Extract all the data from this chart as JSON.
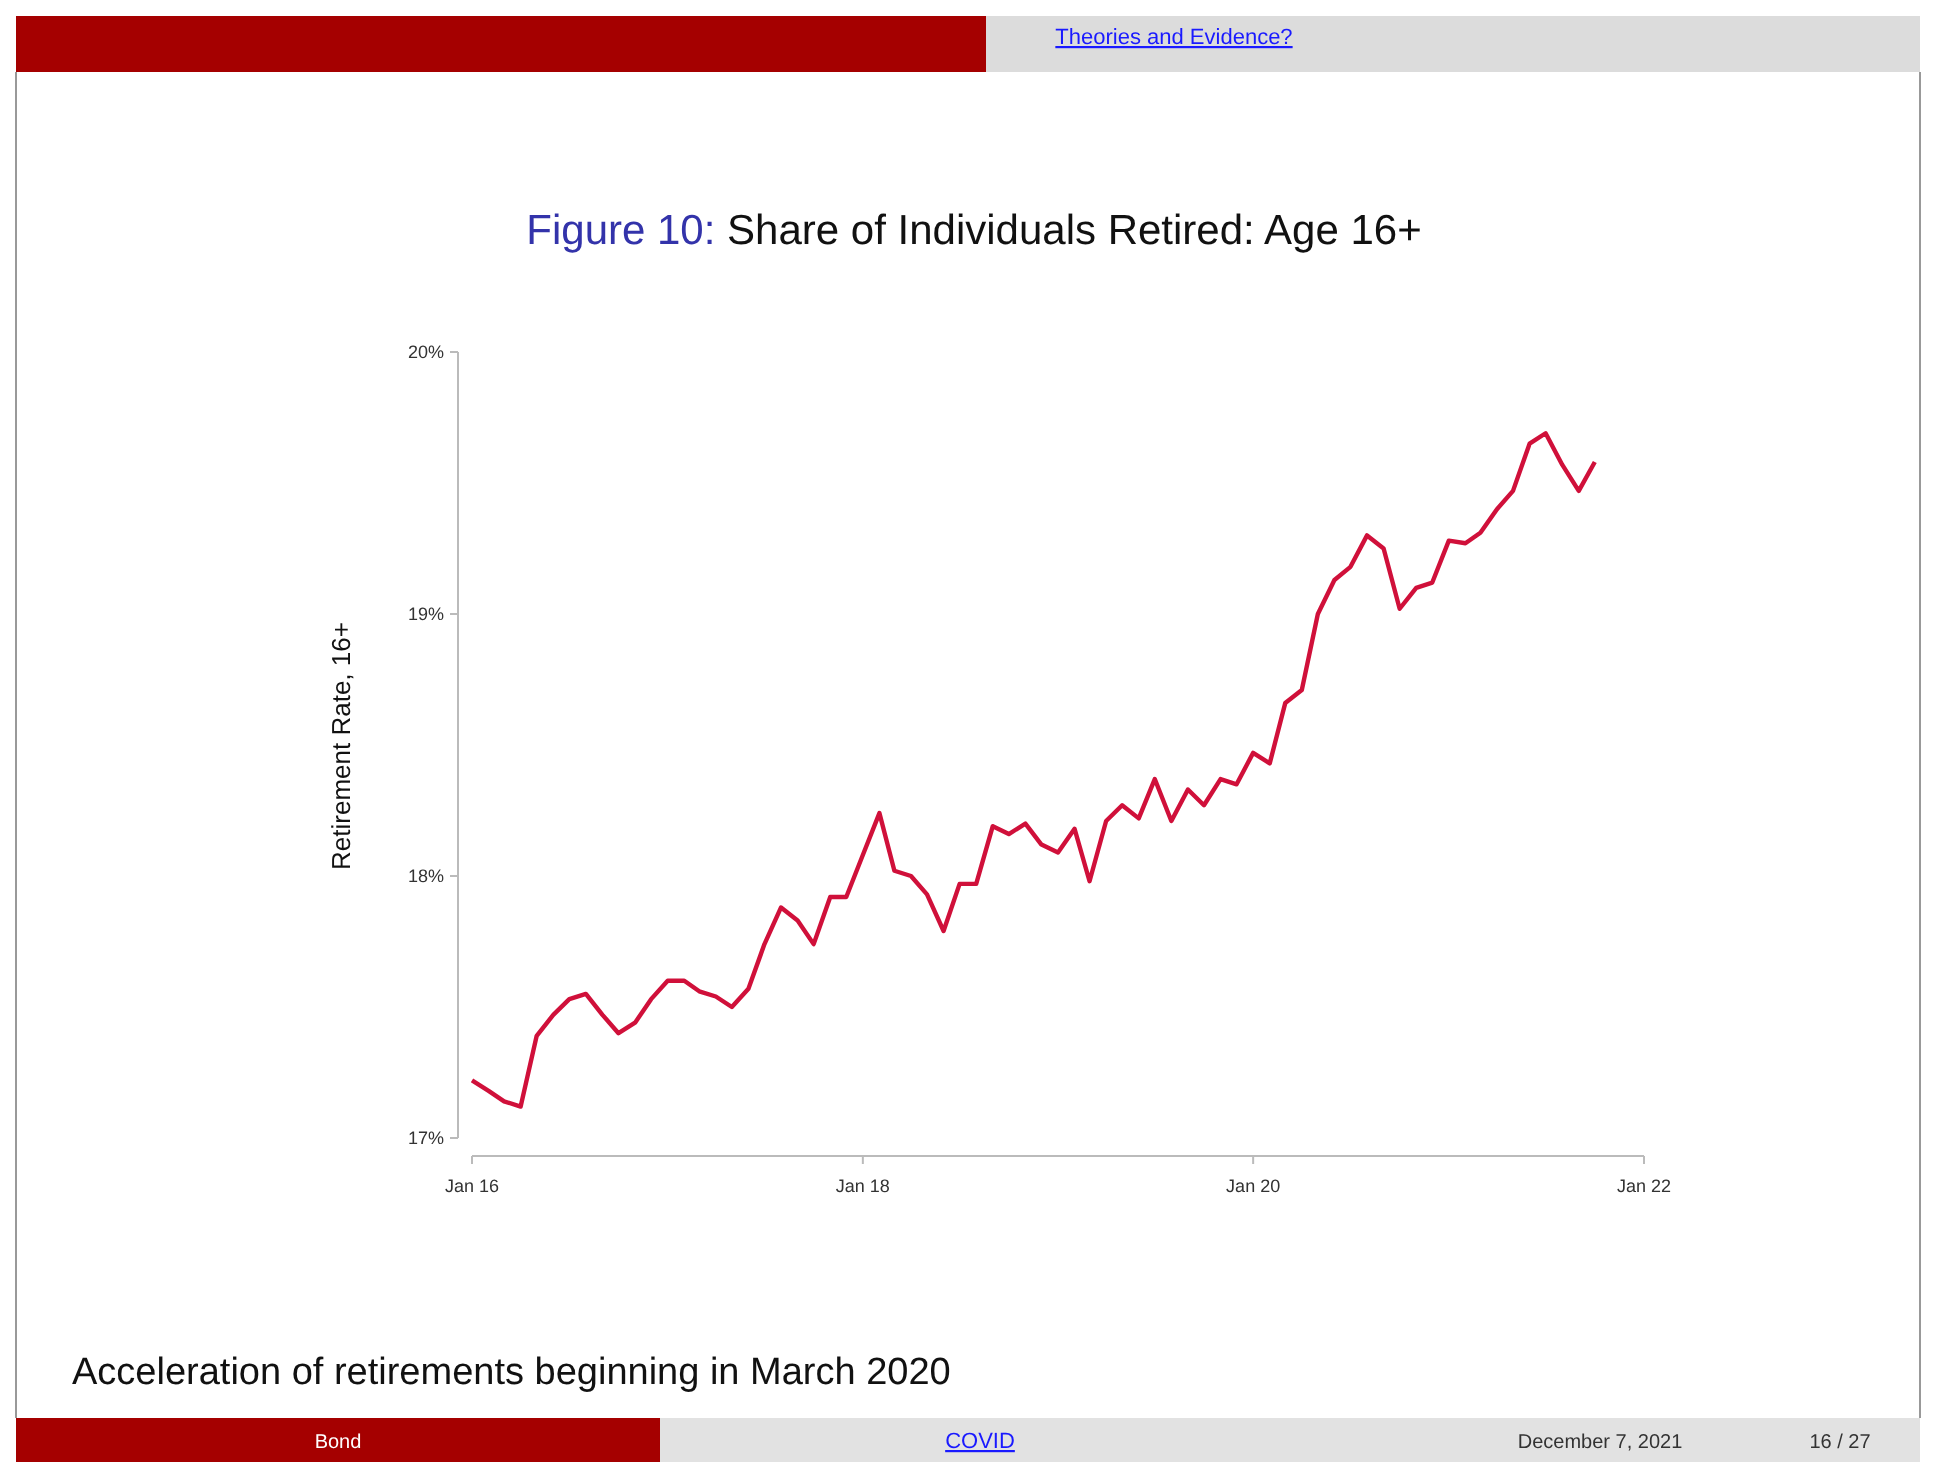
{
  "chart_data": {
    "type": "line",
    "title": "Figure 10: Share of Individuals Retired: Age 16+",
    "ylabel": "Retirement Rate, 16+",
    "annotations": [
      "Theories and Evidence?",
      "Acceleration of retirements beginning in March 2020",
      "Bond",
      "COVID",
      "December 7, 2021",
      "16 / 27"
    ],
    "x": [
      "2016-01",
      "2016-02",
      "2016-03",
      "2016-04",
      "2016-05",
      "2016-06",
      "2016-07",
      "2016-08",
      "2016-09",
      "2016-10",
      "2016-11",
      "2016-12",
      "2017-01",
      "2017-02",
      "2017-03",
      "2017-04",
      "2017-05",
      "2017-06",
      "2017-07",
      "2017-08",
      "2017-09",
      "2017-10",
      "2017-11",
      "2017-12",
      "2018-01",
      "2018-02",
      "2018-03",
      "2018-04",
      "2018-05",
      "2018-06",
      "2018-07",
      "2018-08",
      "2018-09",
      "2018-10",
      "2018-11",
      "2018-12",
      "2019-01",
      "2019-02",
      "2019-03",
      "2019-04",
      "2019-05",
      "2019-06",
      "2019-07",
      "2019-08",
      "2019-09",
      "2019-10",
      "2019-11",
      "2019-12",
      "2020-01",
      "2020-02",
      "2020-03",
      "2020-04",
      "2020-05",
      "2020-06",
      "2020-07",
      "2020-08",
      "2020-09",
      "2020-10",
      "2020-11",
      "2020-12",
      "2021-01",
      "2021-02",
      "2021-03",
      "2021-04",
      "2021-05",
      "2021-06",
      "2021-07",
      "2021-08",
      "2021-09",
      "2021-10"
    ],
    "series": [
      {
        "color": "#d0103a",
        "values": [
          17.22,
          17.18,
          17.14,
          17.12,
          17.39,
          17.47,
          17.53,
          17.55,
          17.47,
          17.4,
          17.44,
          17.53,
          17.6,
          17.6,
          17.56,
          17.54,
          17.5,
          17.57,
          17.74,
          17.88,
          17.83,
          17.74,
          17.92,
          17.92,
          18.08,
          18.24,
          18.02,
          18.0,
          17.93,
          17.79,
          17.97,
          17.97,
          18.19,
          18.16,
          18.2,
          18.12,
          18.09,
          18.18,
          17.98,
          18.21,
          18.27,
          18.22,
          18.37,
          18.21,
          18.33,
          18.27,
          18.37,
          18.35,
          18.47,
          18.43,
          18.66,
          18.71,
          19.0,
          19.13,
          19.18,
          19.3,
          19.25,
          19.02,
          19.1,
          19.12,
          19.28,
          19.27,
          19.31,
          19.4,
          19.47,
          19.65,
          19.69,
          19.57,
          19.47,
          19.58
        ]
      }
    ],
    "xlim": [
      "2016-01",
      "2022-01"
    ],
    "xticks": [
      {
        "value": "2016-01",
        "label": "Jan 16"
      },
      {
        "value": "2018-01",
        "label": "Jan 18"
      },
      {
        "value": "2020-01",
        "label": "Jan 20"
      },
      {
        "value": "2022-01",
        "label": "Jan 22"
      }
    ],
    "ylim": [
      17,
      20
    ],
    "yticks": [
      {
        "value": 17,
        "label": "17%"
      },
      {
        "value": 18,
        "label": "18%"
      },
      {
        "value": 19,
        "label": "19%"
      },
      {
        "value": 20,
        "label": "20%"
      }
    ],
    "grid": false
  }
}
